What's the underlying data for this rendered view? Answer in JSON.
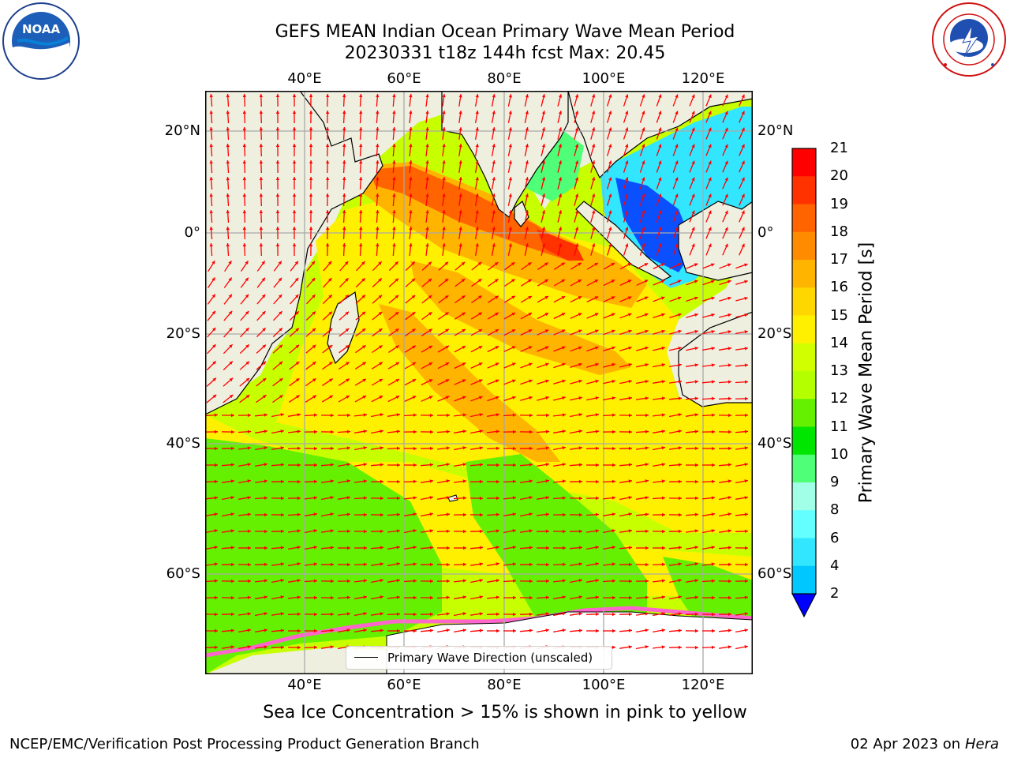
{
  "header": {
    "title_line1": "GEFS MEAN Indian Ocean Primary Wave Mean Period",
    "title_line2": "20230331 t18z 144h fcst   Max: 20.45"
  },
  "logos": {
    "noaa": {
      "text": "NOAA",
      "ring_text": "NATIONAL OCEANIC AND ATMOSPHERIC ADMINISTRATION · U.S. DEPARTMENT OF COMMERCE"
    },
    "nws": {
      "ring_text": "NATIONAL WEATHER SERVICE"
    }
  },
  "map": {
    "lon_labels": [
      "40°E",
      "60°E",
      "80°E",
      "100°E",
      "120°E"
    ],
    "lat_labels_left": [
      "20°N",
      "0°",
      "20°S",
      "40°S",
      "60°S"
    ],
    "lat_labels_right": [
      "20°N",
      "0°",
      "20°S",
      "40°S",
      "60°S"
    ],
    "land_color": "#efefe0",
    "arrow_color": "#ff0000",
    "legend_label": "Primary Wave Direction (unscaled)"
  },
  "colorbar": {
    "title": "Primary Wave Mean Period [s]",
    "ticks": [
      "2",
      "4",
      "6",
      "8",
      "9",
      "10",
      "11",
      "12",
      "13",
      "14",
      "15",
      "16",
      "17",
      "18",
      "19",
      "20",
      "21"
    ],
    "colors": [
      "#0a50ff",
      "#00c8ff",
      "#32e6ff",
      "#64ffff",
      "#a0ffe6",
      "#50ff78",
      "#00e600",
      "#64f000",
      "#b4ff00",
      "#d2ff00",
      "#fff000",
      "#ffd700",
      "#ffb400",
      "#ff8c00",
      "#ff6400",
      "#ff3200",
      "#ff0000"
    ],
    "extend_color": "#0000ff"
  },
  "caption": "Sea Ice Concentration > 15% is shown in pink to yellow",
  "footer": {
    "left": "NCEP/EMC/Verification Post Processing Product Generation Branch",
    "right_prefix": "02 Apr 2023 on ",
    "right_host": "Hera"
  }
}
